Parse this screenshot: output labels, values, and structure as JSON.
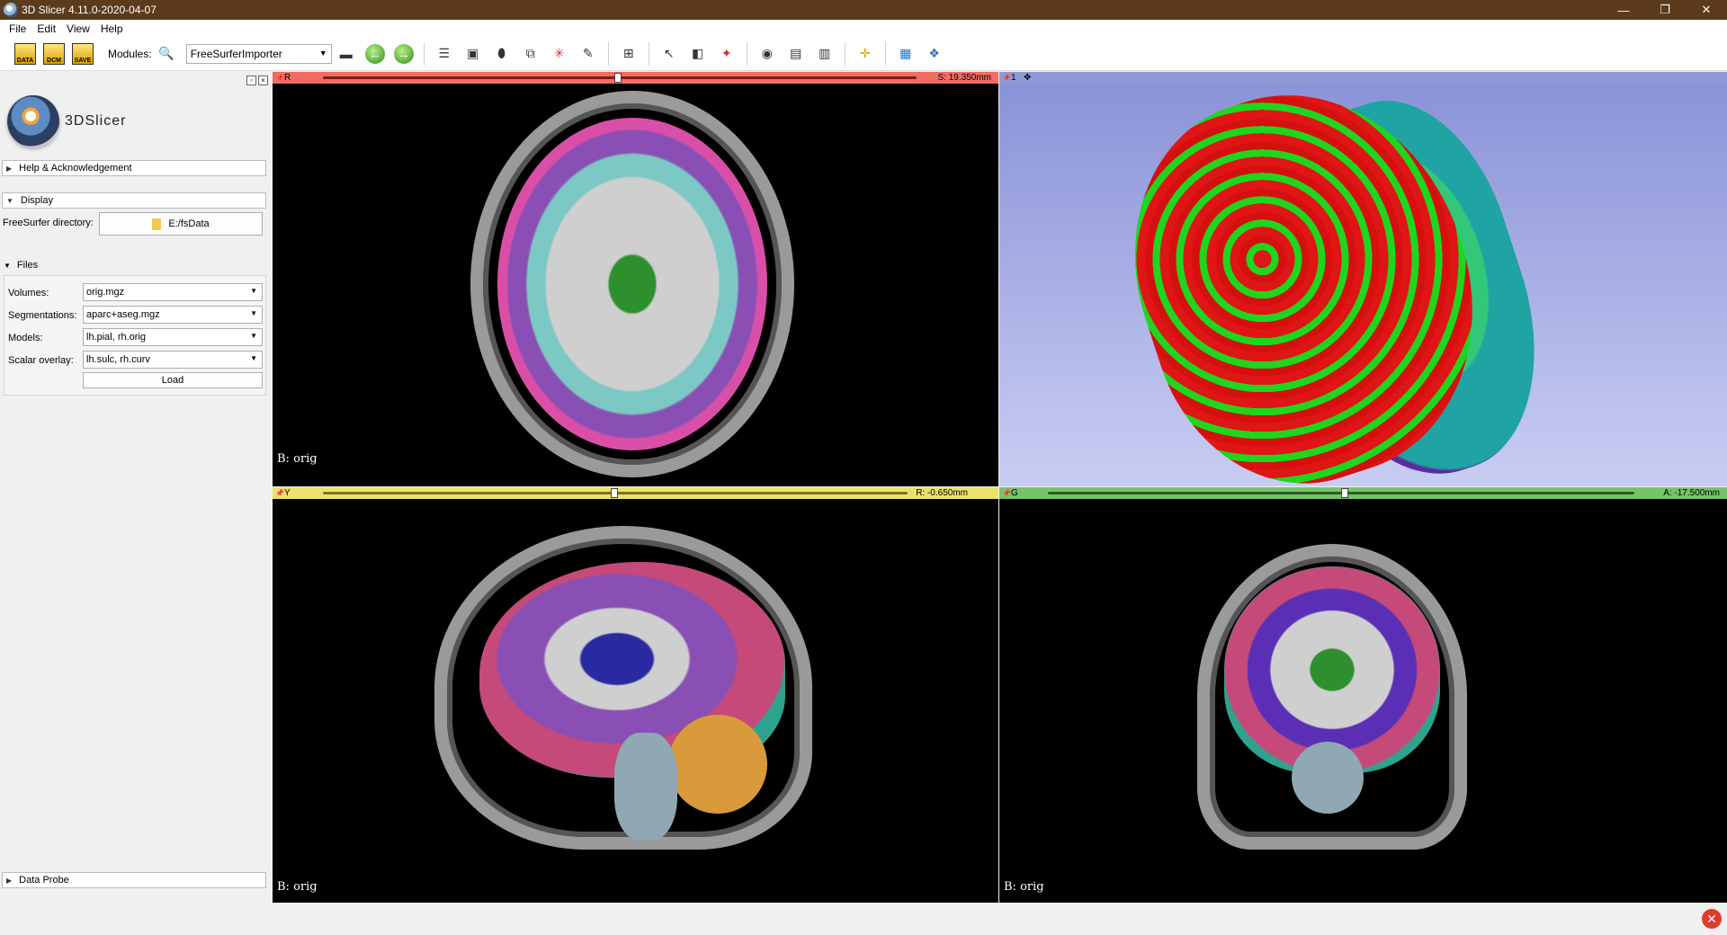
{
  "window": {
    "title": "3D Slicer 4.11.0-2020-04-07",
    "minimize": "—",
    "restore": "❐",
    "close": "✕"
  },
  "menu": {
    "file": "File",
    "edit": "Edit",
    "view": "View",
    "help": "Help"
  },
  "toolbar": {
    "data_label": "DATA",
    "dcm_label": "DCM",
    "save_label": "SAVE",
    "modules_label": "Modules:",
    "module_selected": "FreeSurferImporter"
  },
  "logo": {
    "text": "3DSlicer"
  },
  "panel": {
    "help_section": "Help & Acknowledgement",
    "display_section": "Display",
    "freesurfer_dir_label": "FreeSurfer directory:",
    "freesurfer_dir_value": "E:/fsData",
    "files_section": "Files",
    "volumes_label": "Volumes:",
    "volumes_value": "orig.mgz",
    "segmentations_label": "Segmentations:",
    "segmentations_value": "aparc+aseg.mgz",
    "models_label": "Models:",
    "models_value": "lh.pial, rh.orig",
    "scalar_label": "Scalar overlay:",
    "scalar_value": "lh.sulc, rh.curv",
    "load_button": "Load",
    "data_probe_section": "Data Probe"
  },
  "views": {
    "red": {
      "letter": "R",
      "offset": "S: 19.350mm",
      "bg_label": "B: orig",
      "color": "#f26c63"
    },
    "threed": {
      "letter": "1",
      "color": "#8e9ad6"
    },
    "yellow": {
      "letter": "Y",
      "offset": "R: -0.650mm",
      "bg_label": "B: orig",
      "color": "#ece26b"
    },
    "green": {
      "letter": "G",
      "offset": "A: -17.500mm",
      "bg_label": "B: orig",
      "color": "#77c36a"
    }
  }
}
